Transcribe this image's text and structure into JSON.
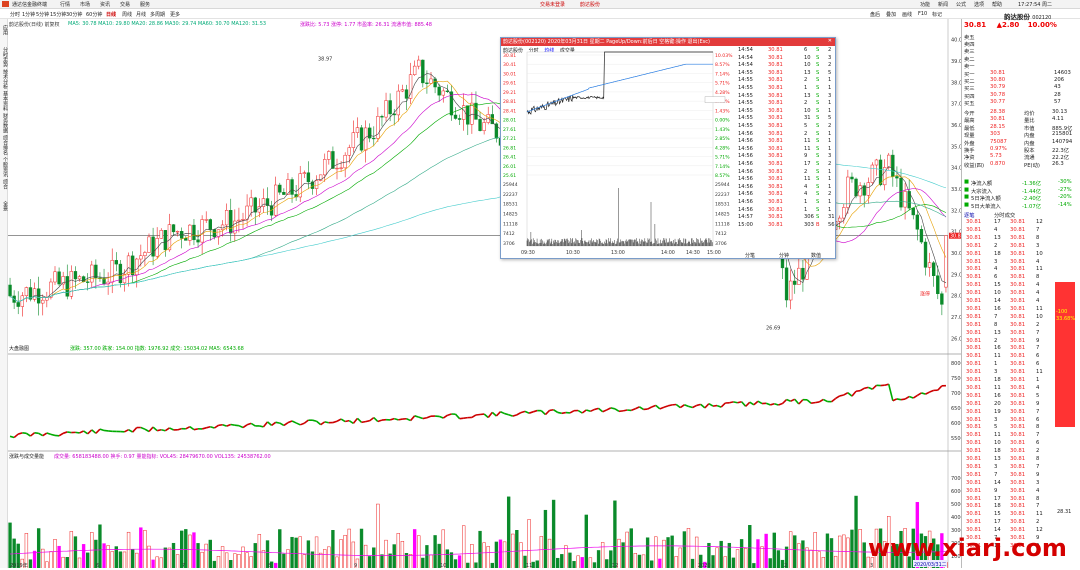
{
  "titlebar": {
    "app": "通达信金融终端",
    "menus": [
      "行情",
      "市场",
      "资讯",
      "交易",
      "服务"
    ],
    "center": "交易未登录",
    "stock": "韵达股份",
    "right_menus": [
      "功能",
      "新闻",
      "公式",
      "选项",
      "帮助"
    ],
    "clock": "17:27:54 周二"
  },
  "toolbar": {
    "periods": [
      "分时",
      "1分钟",
      "5分钟",
      "15分钟",
      "30分钟",
      "60分钟",
      "日线",
      "周线",
      "月线",
      "多周期",
      "更多"
    ],
    "right_items": [
      "盘后",
      "叠加",
      "画线",
      "F10",
      "标记"
    ],
    "ma_line": "MA5: 30.78  MA10: 29.80  MA20: 28.86  MA30: 29.74  MA60: 30.70  MA120: 31.53",
    "ind_title": "韵达股份(日线) 前复权",
    "hints": "涨跌比: 5.73  涨停: 1.77  市盈率: 26.31  流通市值: 885.48"
  },
  "leftnav": [
    "应用",
    "分时走势",
    "技术分析",
    "基本资料",
    "财务数据",
    "综合排名",
    "个股资讯",
    "综合",
    "全景"
  ],
  "main_chart": {
    "price_ticks": [
      "40.00",
      "39.00",
      "38.00",
      "37.00",
      "36.00",
      "35.00",
      "34.00",
      "33.00",
      "32.00",
      "31.00",
      "30.00",
      "29.00",
      "28.00",
      "27.00",
      "26.00"
    ],
    "high_mark": "38.97",
    "low_mark": "26.69",
    "last_tag": "30.81",
    "rise_tag": "涨停"
  },
  "panel2": {
    "title": "大盘融图",
    "line": "涨跌: 357.00  跌家: 154.00  指数: 1976.92  成交: 15034.02  MA5: 6543.68",
    "ticks": [
      "8000",
      "7500",
      "7000",
      "6500",
      "6000",
      "5500"
    ]
  },
  "panel3": {
    "title": "涨跌与成交量能",
    "line": "成交量: 658183488.00  换手: 0.97  量能指标:  VOL45: 28479670.00  VOL135: 24538762.00",
    "ticks": [
      "70000",
      "60000",
      "50000",
      "40000",
      "30000",
      "20000",
      "10000"
    ],
    "x_labels": [
      "2019年",
      "6",
      "7",
      "8",
      "9",
      "10",
      "11",
      "12",
      "2020",
      "2",
      "3"
    ],
    "date_tag": "2020/03/31二"
  },
  "popup": {
    "title": "韵达股份(002120) 2020年03月31日 星期二 PageUp/Down:前后日 空格键:操作  退出(Esc)",
    "tabs": [
      "韵达股份",
      "分时",
      "均线",
      "成交量"
    ],
    "time_ticks": [
      "09:30",
      "10:30",
      "13:00",
      "14:00",
      "14:30",
      "15:00"
    ],
    "price_ticks": [
      "30.81",
      "30.41",
      "30.01",
      "29.61",
      "29.21",
      "28.81",
      "28.41",
      "28.01",
      "27.61",
      "27.21",
      "26.81",
      "26.41",
      "26.01",
      "25.61"
    ],
    "pct_ticks": [
      "10.03%",
      "8.57%",
      "7.14%",
      "5.71%",
      "4.28%",
      "2.85%",
      "1.43%",
      "0.00%",
      "1.43%",
      "2.85%",
      "4.28%",
      "5.71%",
      "7.14%",
      "8.57%"
    ],
    "vol_ticks": [
      "25944",
      "22237",
      "18531",
      "14825",
      "11118",
      "7412",
      "3706"
    ],
    "bottom_tabs": [
      "分笔",
      "分钟",
      "数值"
    ],
    "trades": [
      [
        "14:54",
        "30.81",
        "6",
        "S",
        "2"
      ],
      [
        "14:54",
        "30.81",
        "10",
        "S",
        "3"
      ],
      [
        "14:54",
        "30.81",
        "10",
        "S",
        "2"
      ],
      [
        "14:55",
        "30.81",
        "13",
        "S",
        "5"
      ],
      [
        "14:55",
        "30.81",
        "2",
        "S",
        "1"
      ],
      [
        "14:55",
        "30.81",
        "1",
        "S",
        "1"
      ],
      [
        "14:55",
        "30.81",
        "13",
        "S",
        "3"
      ],
      [
        "14:55",
        "30.81",
        "2",
        "S",
        "1"
      ],
      [
        "14:55",
        "30.81",
        "10",
        "S",
        "1"
      ],
      [
        "14:55",
        "30.81",
        "31",
        "S",
        "5"
      ],
      [
        "14:55",
        "30.81",
        "5",
        "S",
        "2"
      ],
      [
        "14:56",
        "30.81",
        "2",
        "S",
        "1"
      ],
      [
        "14:56",
        "30.81",
        "11",
        "S",
        "1"
      ],
      [
        "14:56",
        "30.81",
        "11",
        "S",
        "1"
      ],
      [
        "14:56",
        "30.81",
        "9",
        "S",
        "3"
      ],
      [
        "14:56",
        "30.81",
        "17",
        "S",
        "2"
      ],
      [
        "14:56",
        "30.81",
        "2",
        "S",
        "1"
      ],
      [
        "14:56",
        "30.81",
        "11",
        "S",
        "1"
      ],
      [
        "14:56",
        "30.81",
        "4",
        "S",
        "1"
      ],
      [
        "14:56",
        "30.81",
        "4",
        "S",
        "2"
      ],
      [
        "14:56",
        "30.81",
        "1",
        "S",
        "1"
      ],
      [
        "14:56",
        "30.81",
        "1",
        "S",
        "1"
      ],
      [
        "14:57",
        "30.81",
        "306",
        "S",
        "31"
      ],
      [
        "15:00",
        "30.81",
        "303",
        "B",
        "56"
      ]
    ]
  },
  "quote": {
    "name": "韵达股份",
    "code": "002120",
    "price": "30.81",
    "change": "▲2.80",
    "pct": "10.00%",
    "sells": [
      [
        "卖五",
        ""
      ],
      [
        "卖四",
        ""
      ],
      [
        "卖三",
        ""
      ],
      [
        "卖二",
        ""
      ],
      [
        "卖一",
        ""
      ]
    ],
    "buys": [
      [
        "买一",
        "30.81",
        "14603"
      ],
      [
        "买二",
        "30.80",
        "206"
      ],
      [
        "买三",
        "30.79",
        "43"
      ],
      [
        "买四",
        "30.78",
        "28"
      ],
      [
        "买五",
        "30.77",
        "57"
      ]
    ],
    "stats": [
      [
        "今开",
        "28.38",
        "均价",
        "30.13"
      ],
      [
        "最高",
        "30.81",
        "量比",
        "4.11"
      ],
      [
        "最低",
        "28.15",
        "市值",
        "885.9亿"
      ],
      [
        "现量",
        "303",
        "内盘",
        "215801"
      ],
      [
        "外盘",
        "75087",
        "内盘",
        "140794"
      ],
      [
        "换手",
        "0.97%",
        "股本",
        "22.3亿"
      ],
      [
        "净资",
        "5.73",
        "流通",
        "22.2亿"
      ],
      [
        "收益(四)",
        "0.870",
        "PE(动)",
        "26.3"
      ]
    ],
    "flows": [
      [
        "净流入额",
        "-1.36亿",
        "-30%"
      ],
      [
        "大宗流入",
        "-1.44亿",
        "-27%"
      ],
      [
        "5日净流入额",
        "-2.40亿",
        "-20%"
      ],
      [
        "5日大单流入",
        "-1.07亿",
        "-14%"
      ]
    ],
    "detail_tabs": [
      "逐笔",
      "分时成交"
    ],
    "trend_tag": "-100",
    "pct_tag": "33.68%",
    "side_price": "28.31"
  },
  "watermark": "www.xiarj.com",
  "chart_data": {
    "type": "candlestick",
    "title": "韵达股份 (002120) 日线",
    "ylim": [
      25.5,
      40.5
    ],
    "x_labels": [
      "2019年",
      "6",
      "7",
      "8",
      "9",
      "10",
      "11",
      "12",
      "2020",
      "2",
      "3"
    ],
    "last_close": 30.81,
    "highest": 38.97,
    "lowest": 26.69,
    "ma": {
      "MA5": 30.78,
      "MA10": 29.8,
      "MA20": 28.86,
      "MA30": 29.74,
      "MA60": 30.7,
      "MA120": 31.53
    },
    "intraday": {
      "open": 28.38,
      "high": 30.81,
      "low": 28.15,
      "close": 30.81,
      "prev_close": 28.01,
      "y_range": [
        25.61,
        30.81
      ]
    },
    "volume_range": [
      0,
      70000
    ]
  }
}
